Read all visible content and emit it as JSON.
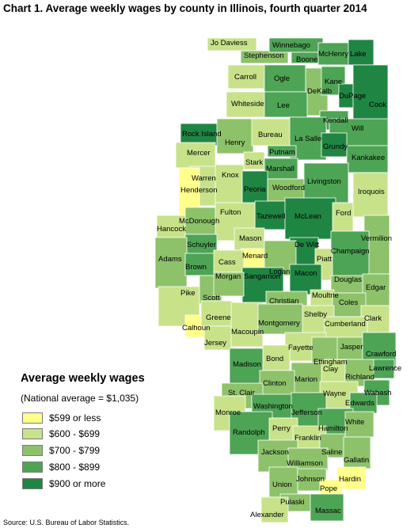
{
  "title": "Chart 1. Average weekly wages by county in Illinois, fourth quarter 2014",
  "legend": {
    "title": "Average weekly wages",
    "note": "(National average = $1,035)",
    "items": [
      {
        "label": "$599 or less",
        "color": "#ffff8c",
        "class": 1
      },
      {
        "label": "$600 - $699",
        "color": "#c8e28a",
        "class": 2
      },
      {
        "label": "$700 - $799",
        "color": "#8dc26a",
        "class": 3
      },
      {
        "label": "$800 - $899",
        "color": "#4ea455",
        "class": 4
      },
      {
        "label": "$900 or more",
        "color": "#1f8542",
        "class": 5
      }
    ]
  },
  "source": "Source: U.S. Bureau of Labor Statistics.",
  "counties": [
    {
      "name": "Jo Daviess",
      "class": 2
    },
    {
      "name": "Stephenson",
      "class": 3
    },
    {
      "name": "Winnebago",
      "class": 4
    },
    {
      "name": "Boone",
      "class": 4
    },
    {
      "name": "McHenry",
      "class": 4
    },
    {
      "name": "Lake",
      "class": 5
    },
    {
      "name": "Carroll",
      "class": 2
    },
    {
      "name": "Ogle",
      "class": 4
    },
    {
      "name": "DeKalb",
      "class": 3
    },
    {
      "name": "Kane",
      "class": 4
    },
    {
      "name": "DuPage",
      "class": 5
    },
    {
      "name": "Cook",
      "class": 5
    },
    {
      "name": "Whiteside",
      "class": 2
    },
    {
      "name": "Lee",
      "class": 4
    },
    {
      "name": "Kendall",
      "class": 4
    },
    {
      "name": "Will",
      "class": 4
    },
    {
      "name": "Rock Island",
      "class": 5
    },
    {
      "name": "Henry",
      "class": 3
    },
    {
      "name": "Bureau",
      "class": 2
    },
    {
      "name": "La Salle",
      "class": 4
    },
    {
      "name": "Grundy",
      "class": 5
    },
    {
      "name": "Kankakee",
      "class": 4
    },
    {
      "name": "Mercer",
      "class": 2
    },
    {
      "name": "Putnam",
      "class": 4
    },
    {
      "name": "Stark",
      "class": 2
    },
    {
      "name": "Marshall",
      "class": 4
    },
    {
      "name": "Warren",
      "class": 2
    },
    {
      "name": "Knox",
      "class": 2
    },
    {
      "name": "Peoria",
      "class": 5
    },
    {
      "name": "Woodford",
      "class": 3
    },
    {
      "name": "Livingston",
      "class": 4
    },
    {
      "name": "Iroquois",
      "class": 2
    },
    {
      "name": "Henderson",
      "class": 1
    },
    {
      "name": "Tazewell",
      "class": 5
    },
    {
      "name": "McLean",
      "class": 5
    },
    {
      "name": "Ford",
      "class": 2
    },
    {
      "name": "Hancock",
      "class": 2
    },
    {
      "name": "McDonough",
      "class": 3
    },
    {
      "name": "Fulton",
      "class": 2
    },
    {
      "name": "Mason",
      "class": 2
    },
    {
      "name": "Vermilion",
      "class": 3
    },
    {
      "name": "Schuyler",
      "class": 4
    },
    {
      "name": "De Witt",
      "class": 5
    },
    {
      "name": "Champaign",
      "class": 4
    },
    {
      "name": "Menard",
      "class": 1
    },
    {
      "name": "Logan",
      "class": 3
    },
    {
      "name": "Piatt",
      "class": 2
    },
    {
      "name": "Adams",
      "class": 3
    },
    {
      "name": "Brown",
      "class": 4
    },
    {
      "name": "Cass",
      "class": 2
    },
    {
      "name": "Sangamon",
      "class": 5
    },
    {
      "name": "Macon",
      "class": 5
    },
    {
      "name": "Douglas",
      "class": 3
    },
    {
      "name": "Edgar",
      "class": 3
    },
    {
      "name": "Pike",
      "class": 2
    },
    {
      "name": "Scott",
      "class": 3
    },
    {
      "name": "Morgan",
      "class": 3
    },
    {
      "name": "Christian",
      "class": 3
    },
    {
      "name": "Moultrie",
      "class": 2
    },
    {
      "name": "Coles",
      "class": 3
    },
    {
      "name": "Shelby",
      "class": 2
    },
    {
      "name": "Clark",
      "class": 2
    },
    {
      "name": "Calhoun",
      "class": 1
    },
    {
      "name": "Greene",
      "class": 2
    },
    {
      "name": "Macoupin",
      "class": 2
    },
    {
      "name": "Montgomery",
      "class": 3
    },
    {
      "name": "Cumberland",
      "class": 2
    },
    {
      "name": "Jersey",
      "class": 2
    },
    {
      "name": "Fayette",
      "class": 2
    },
    {
      "name": "Effingham",
      "class": 3
    },
    {
      "name": "Jasper",
      "class": 3
    },
    {
      "name": "Crawford",
      "class": 4
    },
    {
      "name": "Madison",
      "class": 4
    },
    {
      "name": "Bond",
      "class": 2
    },
    {
      "name": "Lawrence",
      "class": 4
    },
    {
      "name": "Clay",
      "class": 2
    },
    {
      "name": "Richland",
      "class": 3
    },
    {
      "name": "Marion",
      "class": 3
    },
    {
      "name": "Clinton",
      "class": 3
    },
    {
      "name": "St. Clair",
      "class": 3
    },
    {
      "name": "Wabash",
      "class": 4
    },
    {
      "name": "Wayne",
      "class": 2
    },
    {
      "name": "Edwards",
      "class": 4
    },
    {
      "name": "Washington",
      "class": 4
    },
    {
      "name": "Monroe",
      "class": 2
    },
    {
      "name": "Jefferson",
      "class": 4
    },
    {
      "name": "Hamilton",
      "class": 4
    },
    {
      "name": "White",
      "class": 3
    },
    {
      "name": "Randolph",
      "class": 4
    },
    {
      "name": "Perry",
      "class": 2
    },
    {
      "name": "Franklin",
      "class": 2
    },
    {
      "name": "Saline",
      "class": 3
    },
    {
      "name": "Jackson",
      "class": 3
    },
    {
      "name": "Gallatin",
      "class": 3
    },
    {
      "name": "Williamson",
      "class": 3
    },
    {
      "name": "Union",
      "class": 3
    },
    {
      "name": "Johnson",
      "class": 3
    },
    {
      "name": "Hardin",
      "class": 1
    },
    {
      "name": "Pope",
      "class": 1
    },
    {
      "name": "Pulaski",
      "class": 3
    },
    {
      "name": "Massac",
      "class": 4
    },
    {
      "name": "Alexander",
      "class": 2
    }
  ]
}
